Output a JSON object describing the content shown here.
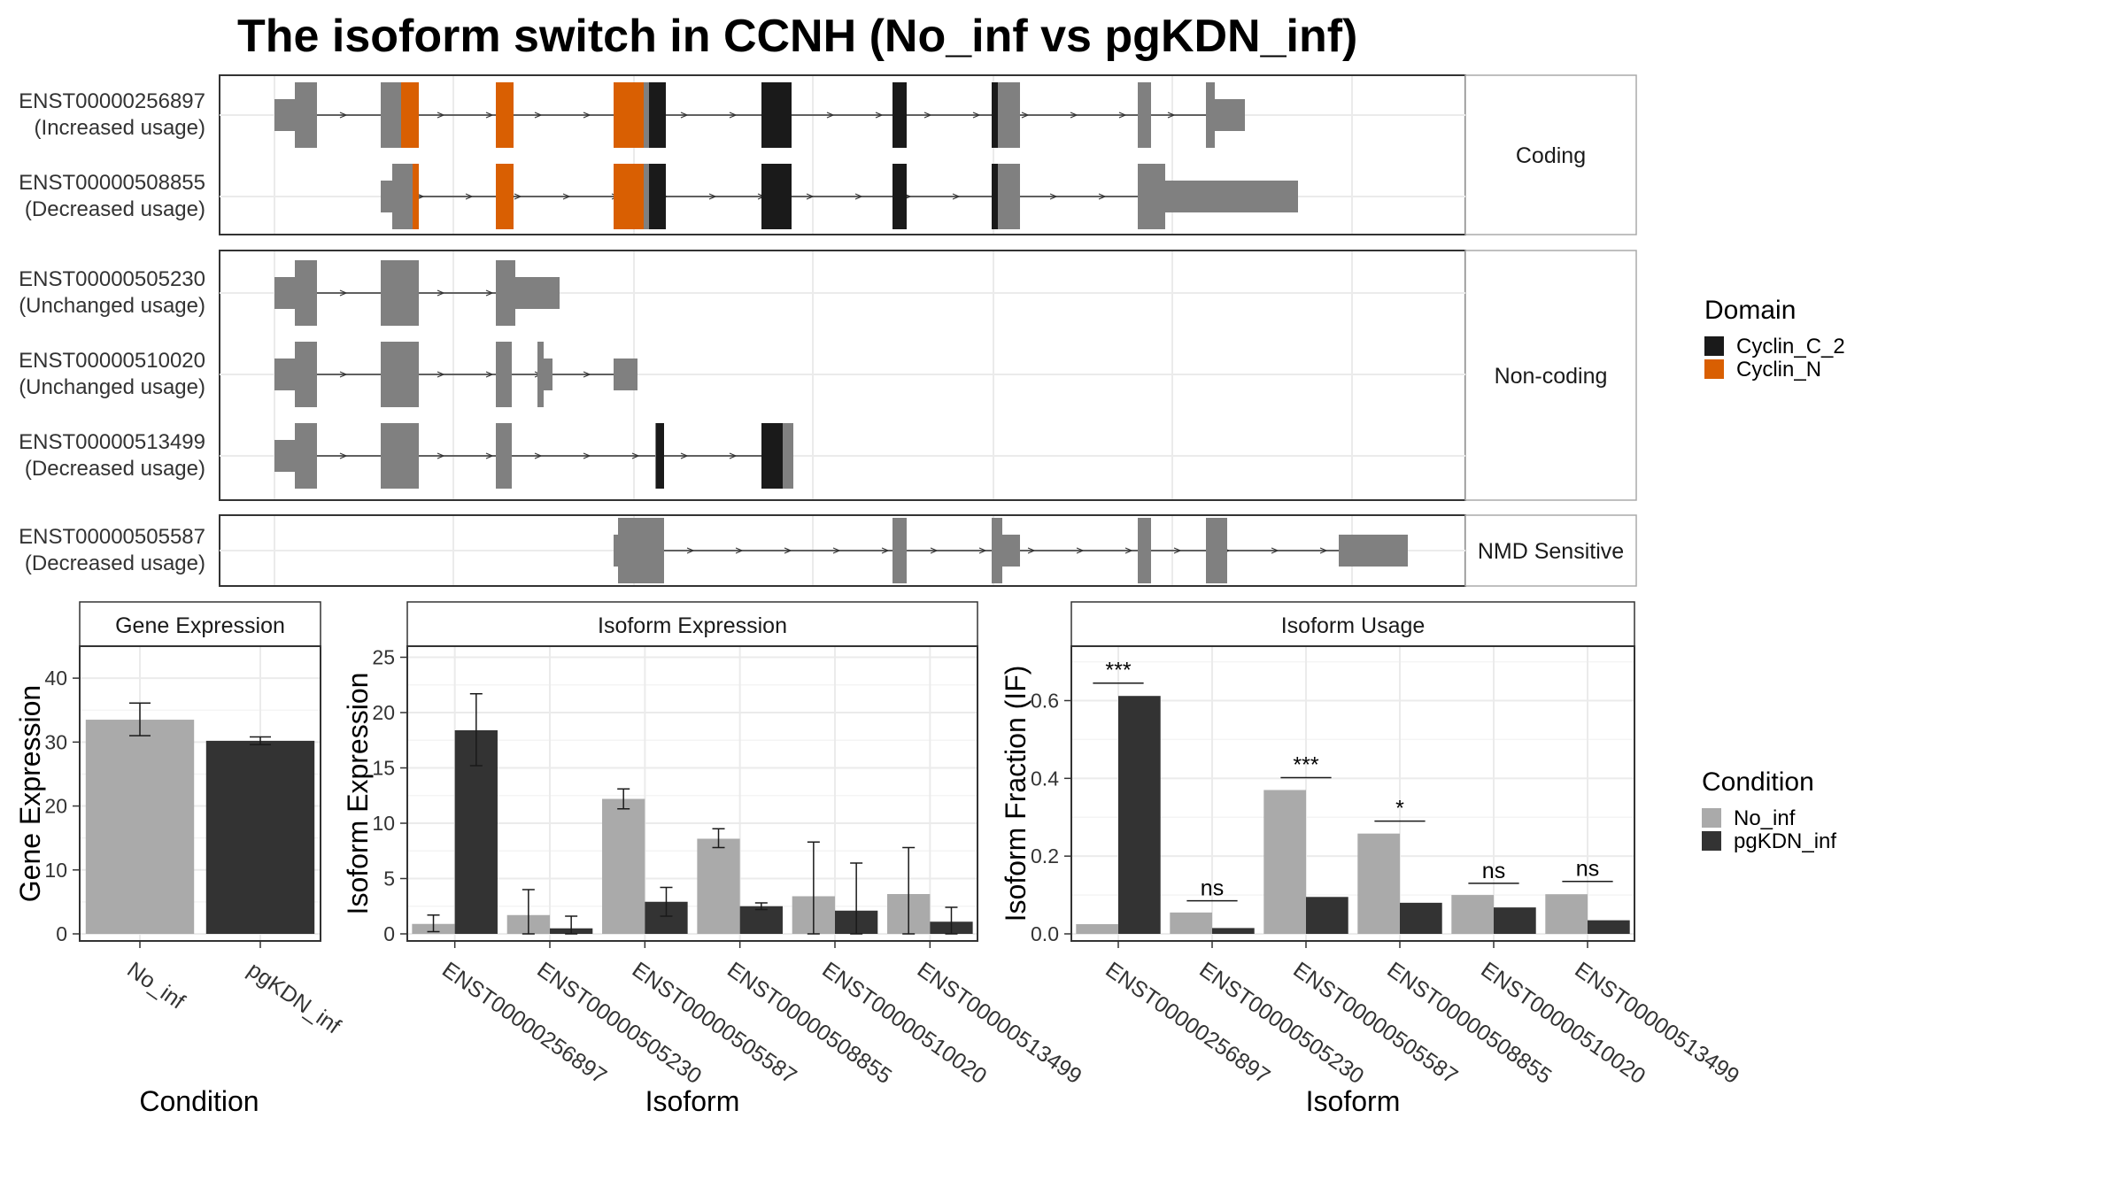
{
  "title": "The isoform switch in CCNH (No_inf vs pgKDN_inf)",
  "colors": {
    "utr": "#808080",
    "cyclin_c2": "#1a1a1a",
    "cyclin_n": "#d95f02",
    "no_inf": "#aaaaaa",
    "pgkdn_inf": "#333333"
  },
  "structure": {
    "transcripts": [
      {
        "id": "ENST00000256897",
        "usage": "(Increased usage)",
        "group": "Coding"
      },
      {
        "id": "ENST00000508855",
        "usage": "(Decreased usage)",
        "group": "Coding"
      },
      {
        "id": "ENST00000505230",
        "usage": "(Unchanged usage)",
        "group": "Non-coding"
      },
      {
        "id": "ENST00000510020",
        "usage": "(Unchanged usage)",
        "group": "Non-coding"
      },
      {
        "id": "ENST00000513499",
        "usage": "(Decreased usage)",
        "group": "Non-coding"
      },
      {
        "id": "ENST00000505587",
        "usage": "(Decreased usage)",
        "group": "NMD Sensitive"
      }
    ],
    "groups": [
      "Coding",
      "Non-coding",
      "NMD Sensitive"
    ]
  },
  "legend_domain": {
    "title": "Domain",
    "items": [
      {
        "label": "Cyclin_C_2",
        "color": "#1a1a1a"
      },
      {
        "label": "Cyclin_N",
        "color": "#d95f02"
      }
    ]
  },
  "legend_condition": {
    "title": "Condition",
    "items": [
      {
        "label": "No_inf",
        "color": "#aaaaaa"
      },
      {
        "label": "pgKDN_inf",
        "color": "#333333"
      }
    ]
  },
  "chart_data": [
    {
      "type": "bar",
      "title": "Gene Expression",
      "xlabel": "Condition",
      "ylabel": "Gene Expression",
      "ylim": [
        0,
        45
      ],
      "yticks": [
        0,
        10,
        20,
        30,
        40
      ],
      "categories": [
        "No_inf",
        "pgKDN_inf"
      ],
      "values": [
        33.5,
        30.2
      ],
      "errors": [
        [
          31.0,
          36.1
        ],
        [
          29.6,
          30.8
        ]
      ]
    },
    {
      "type": "bar",
      "title": "Isoform Expression",
      "xlabel": "Isoform",
      "ylabel": "Isoform Expression",
      "ylim": [
        0,
        26
      ],
      "yticks": [
        0,
        5,
        10,
        15,
        20,
        25
      ],
      "categories": [
        "ENST00000256897",
        "ENST00000505230",
        "ENST00000505587",
        "ENST00000508855",
        "ENST00000510020",
        "ENST00000513499"
      ],
      "series": [
        {
          "name": "No_inf",
          "values": [
            0.9,
            1.7,
            12.2,
            8.6,
            3.4,
            3.6
          ],
          "errors": [
            [
              0.2,
              1.7
            ],
            [
              0.0,
              4.0
            ],
            [
              11.3,
              13.1
            ],
            [
              7.8,
              9.5
            ],
            [
              0.0,
              8.3
            ],
            [
              0.0,
              7.8
            ]
          ]
        },
        {
          "name": "pgKDN_inf",
          "values": [
            18.4,
            0.5,
            2.9,
            2.5,
            2.1,
            1.1
          ],
          "errors": [
            [
              15.2,
              21.7
            ],
            [
              0.0,
              1.6
            ],
            [
              1.6,
              4.2
            ],
            [
              2.2,
              2.8
            ],
            [
              0.0,
              6.4
            ],
            [
              0.0,
              2.4
            ]
          ]
        }
      ]
    },
    {
      "type": "bar",
      "title": "Isoform Usage",
      "xlabel": "Isoform",
      "ylabel": "Isoform Fraction (IF)",
      "ylim": [
        0,
        0.74
      ],
      "yticks": [
        0.0,
        0.2,
        0.4,
        0.6
      ],
      "ytick_labels": [
        "0.0",
        "0.2",
        "0.4",
        "0.6"
      ],
      "categories": [
        "ENST00000256897",
        "ENST00000505230",
        "ENST00000505587",
        "ENST00000508855",
        "ENST00000510020",
        "ENST00000513499"
      ],
      "series": [
        {
          "name": "No_inf",
          "values": [
            0.025,
            0.055,
            0.37,
            0.258,
            0.1,
            0.102
          ]
        },
        {
          "name": "pgKDN_inf",
          "values": [
            0.612,
            0.015,
            0.095,
            0.08,
            0.068,
            0.035
          ]
        }
      ],
      "significance": [
        "***",
        "ns",
        "***",
        "*",
        "ns",
        "ns"
      ],
      "sig_levels": [
        0.645,
        0.085,
        0.402,
        0.29,
        0.13,
        0.135
      ]
    }
  ]
}
